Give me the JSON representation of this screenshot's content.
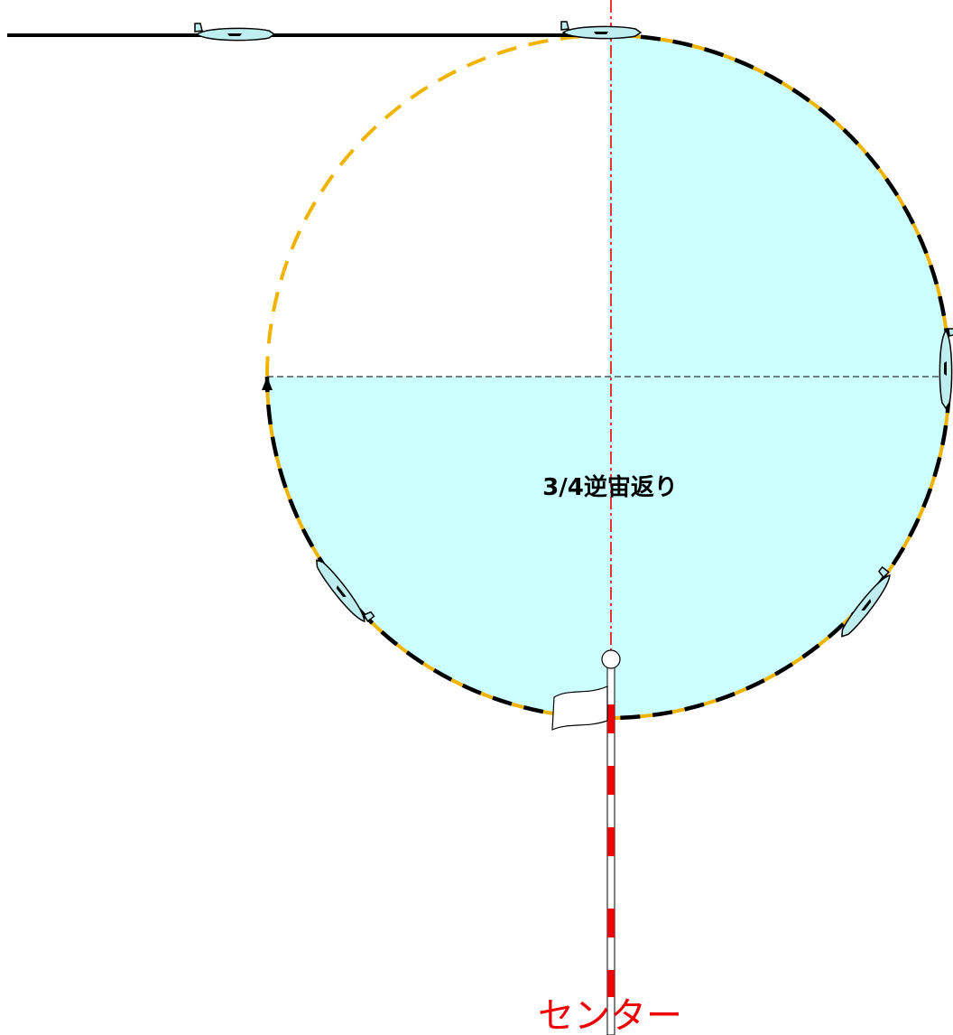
{
  "diagram": {
    "maneuver_label": "3/4逆宙返り",
    "center_label": "センター"
  }
}
